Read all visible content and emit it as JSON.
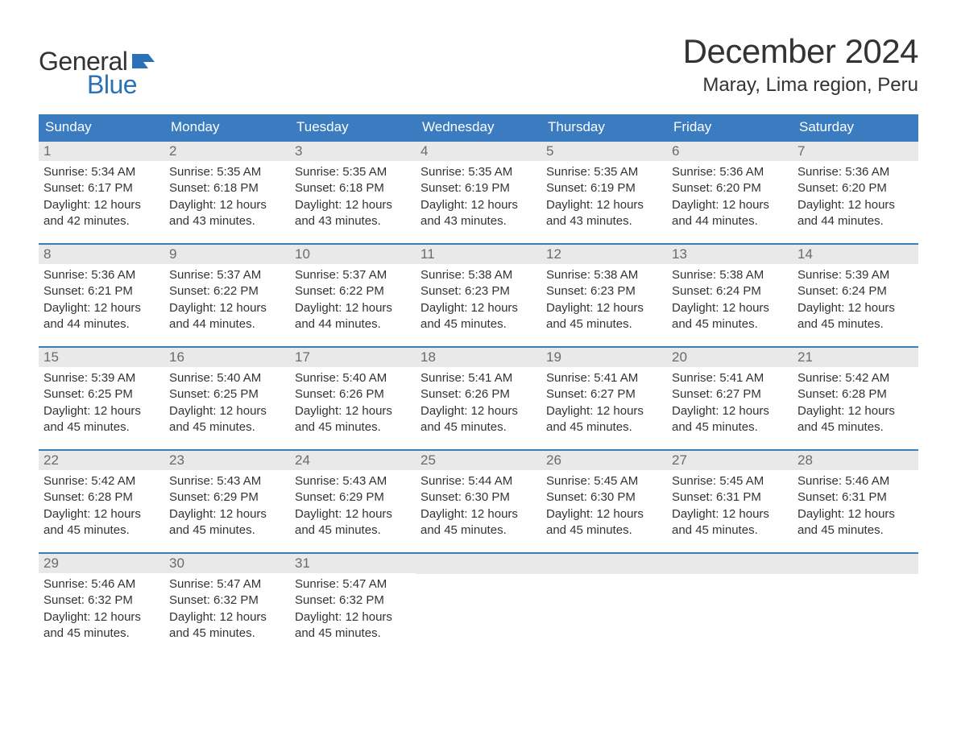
{
  "logo": {
    "text_general": "General",
    "text_blue": "Blue",
    "brand_color": "#2a71b8"
  },
  "header": {
    "month_title": "December 2024",
    "location": "Maray, Lima region, Peru",
    "title_fontsize": 42,
    "location_fontsize": 24
  },
  "calendar": {
    "type": "table",
    "columns": [
      "Sunday",
      "Monday",
      "Tuesday",
      "Wednesday",
      "Thursday",
      "Friday",
      "Saturday"
    ],
    "header_bg": "#3b7bbf",
    "header_text_color": "#ffffff",
    "daynum_bg": "#e9e9e9",
    "daynum_color": "#6b6b6b",
    "row_border_color": "#3b7bbf",
    "body_text_color": "#333333",
    "body_fontsize": 15,
    "weeks": [
      [
        {
          "day": "1",
          "sunrise": "Sunrise: 5:34 AM",
          "sunset": "Sunset: 6:17 PM",
          "daylight1": "Daylight: 12 hours",
          "daylight2": "and 42 minutes."
        },
        {
          "day": "2",
          "sunrise": "Sunrise: 5:35 AM",
          "sunset": "Sunset: 6:18 PM",
          "daylight1": "Daylight: 12 hours",
          "daylight2": "and 43 minutes."
        },
        {
          "day": "3",
          "sunrise": "Sunrise: 5:35 AM",
          "sunset": "Sunset: 6:18 PM",
          "daylight1": "Daylight: 12 hours",
          "daylight2": "and 43 minutes."
        },
        {
          "day": "4",
          "sunrise": "Sunrise: 5:35 AM",
          "sunset": "Sunset: 6:19 PM",
          "daylight1": "Daylight: 12 hours",
          "daylight2": "and 43 minutes."
        },
        {
          "day": "5",
          "sunrise": "Sunrise: 5:35 AM",
          "sunset": "Sunset: 6:19 PM",
          "daylight1": "Daylight: 12 hours",
          "daylight2": "and 43 minutes."
        },
        {
          "day": "6",
          "sunrise": "Sunrise: 5:36 AM",
          "sunset": "Sunset: 6:20 PM",
          "daylight1": "Daylight: 12 hours",
          "daylight2": "and 44 minutes."
        },
        {
          "day": "7",
          "sunrise": "Sunrise: 5:36 AM",
          "sunset": "Sunset: 6:20 PM",
          "daylight1": "Daylight: 12 hours",
          "daylight2": "and 44 minutes."
        }
      ],
      [
        {
          "day": "8",
          "sunrise": "Sunrise: 5:36 AM",
          "sunset": "Sunset: 6:21 PM",
          "daylight1": "Daylight: 12 hours",
          "daylight2": "and 44 minutes."
        },
        {
          "day": "9",
          "sunrise": "Sunrise: 5:37 AM",
          "sunset": "Sunset: 6:22 PM",
          "daylight1": "Daylight: 12 hours",
          "daylight2": "and 44 minutes."
        },
        {
          "day": "10",
          "sunrise": "Sunrise: 5:37 AM",
          "sunset": "Sunset: 6:22 PM",
          "daylight1": "Daylight: 12 hours",
          "daylight2": "and 44 minutes."
        },
        {
          "day": "11",
          "sunrise": "Sunrise: 5:38 AM",
          "sunset": "Sunset: 6:23 PM",
          "daylight1": "Daylight: 12 hours",
          "daylight2": "and 45 minutes."
        },
        {
          "day": "12",
          "sunrise": "Sunrise: 5:38 AM",
          "sunset": "Sunset: 6:23 PM",
          "daylight1": "Daylight: 12 hours",
          "daylight2": "and 45 minutes."
        },
        {
          "day": "13",
          "sunrise": "Sunrise: 5:38 AM",
          "sunset": "Sunset: 6:24 PM",
          "daylight1": "Daylight: 12 hours",
          "daylight2": "and 45 minutes."
        },
        {
          "day": "14",
          "sunrise": "Sunrise: 5:39 AM",
          "sunset": "Sunset: 6:24 PM",
          "daylight1": "Daylight: 12 hours",
          "daylight2": "and 45 minutes."
        }
      ],
      [
        {
          "day": "15",
          "sunrise": "Sunrise: 5:39 AM",
          "sunset": "Sunset: 6:25 PM",
          "daylight1": "Daylight: 12 hours",
          "daylight2": "and 45 minutes."
        },
        {
          "day": "16",
          "sunrise": "Sunrise: 5:40 AM",
          "sunset": "Sunset: 6:25 PM",
          "daylight1": "Daylight: 12 hours",
          "daylight2": "and 45 minutes."
        },
        {
          "day": "17",
          "sunrise": "Sunrise: 5:40 AM",
          "sunset": "Sunset: 6:26 PM",
          "daylight1": "Daylight: 12 hours",
          "daylight2": "and 45 minutes."
        },
        {
          "day": "18",
          "sunrise": "Sunrise: 5:41 AM",
          "sunset": "Sunset: 6:26 PM",
          "daylight1": "Daylight: 12 hours",
          "daylight2": "and 45 minutes."
        },
        {
          "day": "19",
          "sunrise": "Sunrise: 5:41 AM",
          "sunset": "Sunset: 6:27 PM",
          "daylight1": "Daylight: 12 hours",
          "daylight2": "and 45 minutes."
        },
        {
          "day": "20",
          "sunrise": "Sunrise: 5:41 AM",
          "sunset": "Sunset: 6:27 PM",
          "daylight1": "Daylight: 12 hours",
          "daylight2": "and 45 minutes."
        },
        {
          "day": "21",
          "sunrise": "Sunrise: 5:42 AM",
          "sunset": "Sunset: 6:28 PM",
          "daylight1": "Daylight: 12 hours",
          "daylight2": "and 45 minutes."
        }
      ],
      [
        {
          "day": "22",
          "sunrise": "Sunrise: 5:42 AM",
          "sunset": "Sunset: 6:28 PM",
          "daylight1": "Daylight: 12 hours",
          "daylight2": "and 45 minutes."
        },
        {
          "day": "23",
          "sunrise": "Sunrise: 5:43 AM",
          "sunset": "Sunset: 6:29 PM",
          "daylight1": "Daylight: 12 hours",
          "daylight2": "and 45 minutes."
        },
        {
          "day": "24",
          "sunrise": "Sunrise: 5:43 AM",
          "sunset": "Sunset: 6:29 PM",
          "daylight1": "Daylight: 12 hours",
          "daylight2": "and 45 minutes."
        },
        {
          "day": "25",
          "sunrise": "Sunrise: 5:44 AM",
          "sunset": "Sunset: 6:30 PM",
          "daylight1": "Daylight: 12 hours",
          "daylight2": "and 45 minutes."
        },
        {
          "day": "26",
          "sunrise": "Sunrise: 5:45 AM",
          "sunset": "Sunset: 6:30 PM",
          "daylight1": "Daylight: 12 hours",
          "daylight2": "and 45 minutes."
        },
        {
          "day": "27",
          "sunrise": "Sunrise: 5:45 AM",
          "sunset": "Sunset: 6:31 PM",
          "daylight1": "Daylight: 12 hours",
          "daylight2": "and 45 minutes."
        },
        {
          "day": "28",
          "sunrise": "Sunrise: 5:46 AM",
          "sunset": "Sunset: 6:31 PM",
          "daylight1": "Daylight: 12 hours",
          "daylight2": "and 45 minutes."
        }
      ],
      [
        {
          "day": "29",
          "sunrise": "Sunrise: 5:46 AM",
          "sunset": "Sunset: 6:32 PM",
          "daylight1": "Daylight: 12 hours",
          "daylight2": "and 45 minutes."
        },
        {
          "day": "30",
          "sunrise": "Sunrise: 5:47 AM",
          "sunset": "Sunset: 6:32 PM",
          "daylight1": "Daylight: 12 hours",
          "daylight2": "and 45 minutes."
        },
        {
          "day": "31",
          "sunrise": "Sunrise: 5:47 AM",
          "sunset": "Sunset: 6:32 PM",
          "daylight1": "Daylight: 12 hours",
          "daylight2": "and 45 minutes."
        },
        null,
        null,
        null,
        null
      ]
    ]
  }
}
